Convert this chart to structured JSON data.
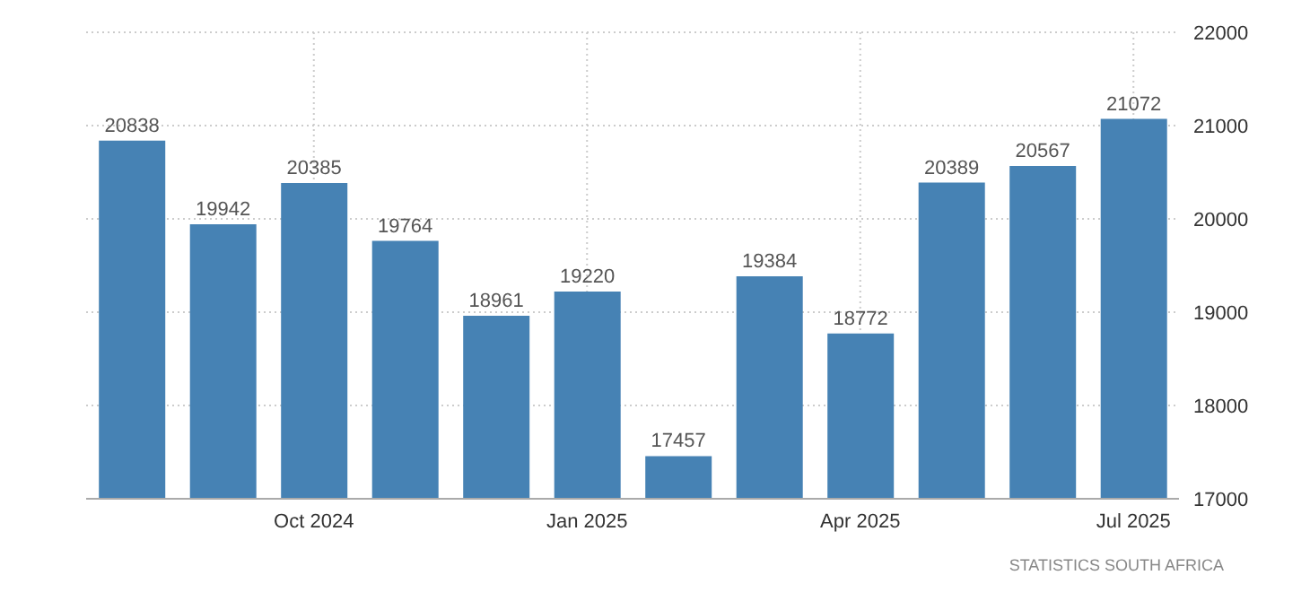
{
  "chart_data": {
    "type": "bar",
    "categories": [
      null,
      null,
      "Oct 2024",
      null,
      null,
      "Jan 2025",
      null,
      null,
      "Apr 2025",
      null,
      null,
      "Jul 2025"
    ],
    "values": [
      20838,
      19942,
      20385,
      19764,
      18961,
      19220,
      17457,
      19384,
      18772,
      20389,
      20567,
      21072
    ],
    "color": "#4682b4",
    "ylim": [
      17000,
      22000
    ],
    "yticks": [
      17000,
      18000,
      19000,
      20000,
      21000,
      22000
    ],
    "grid": true,
    "data_labels": true,
    "annotations": [
      "STATISTICS SOUTH AFRICA"
    ]
  }
}
